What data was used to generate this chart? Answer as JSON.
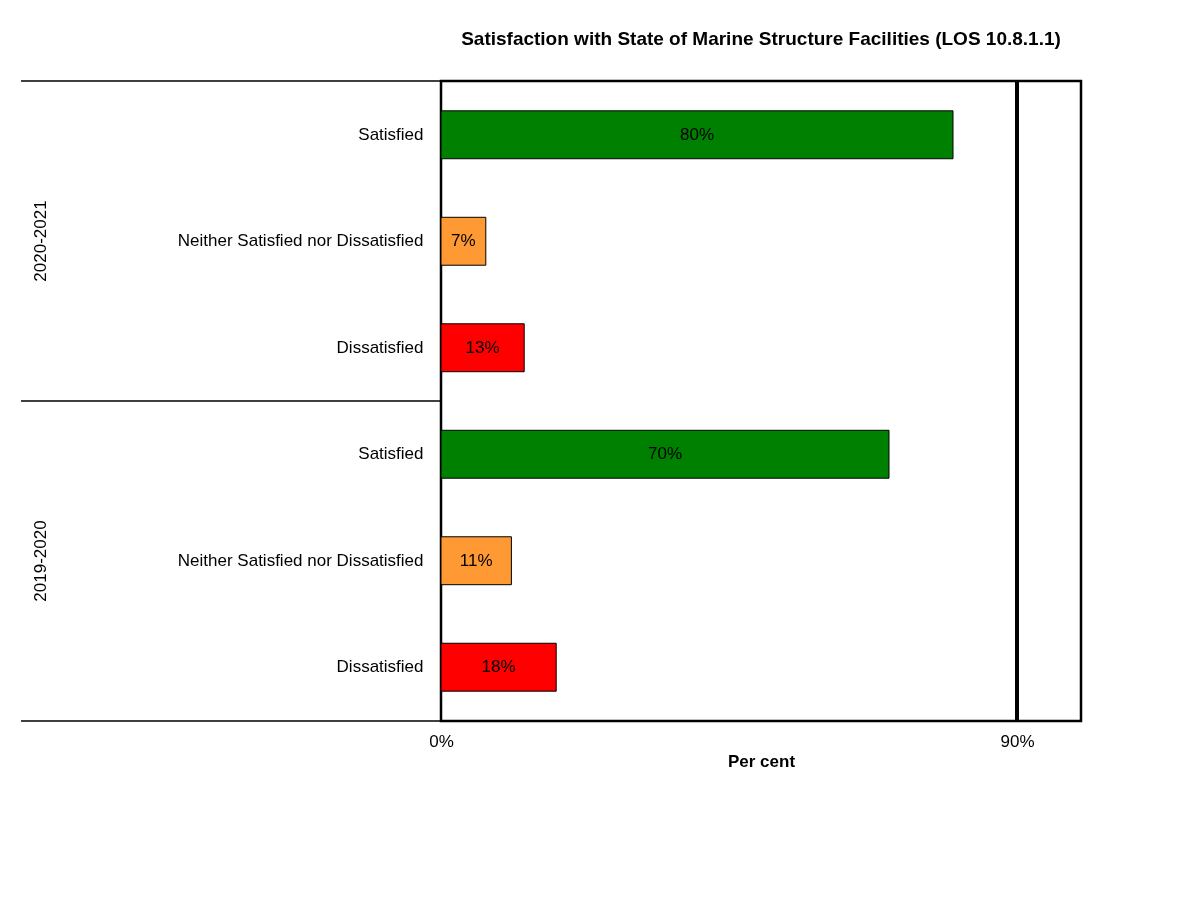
{
  "chart_data": {
    "type": "bar",
    "orientation": "horizontal",
    "title": "Satisfaction with State of Marine Structure Facilities (LOS 10.8.1.1)",
    "xlabel": "Per cent",
    "categories": [
      "Satisfied",
      "Neither Satisfied nor Dissatisfied",
      "Dissatisfied",
      "Satisfied",
      "Neither Satisfied nor Dissatisfied",
      "Dissatisfied"
    ],
    "values": [
      80,
      7,
      13,
      70,
      11,
      18
    ],
    "colors": [
      "#008000",
      "#ff9933",
      "#ff0000",
      "#008000",
      "#ff9933",
      "#ff0000"
    ],
    "value_labels": [
      "80%",
      "7%",
      "13%",
      "70%",
      "11%",
      "18%"
    ],
    "xlim": [
      0,
      100
    ],
    "xticks": [
      {
        "value": 0,
        "label": "0%"
      },
      {
        "value": 90,
        "label": "90%"
      }
    ],
    "ref_lines": [
      {
        "axis": "x",
        "value": 90,
        "color": "#000000"
      }
    ],
    "annotations": [
      "2020-2021",
      "2019-2020"
    ],
    "grid": false
  }
}
